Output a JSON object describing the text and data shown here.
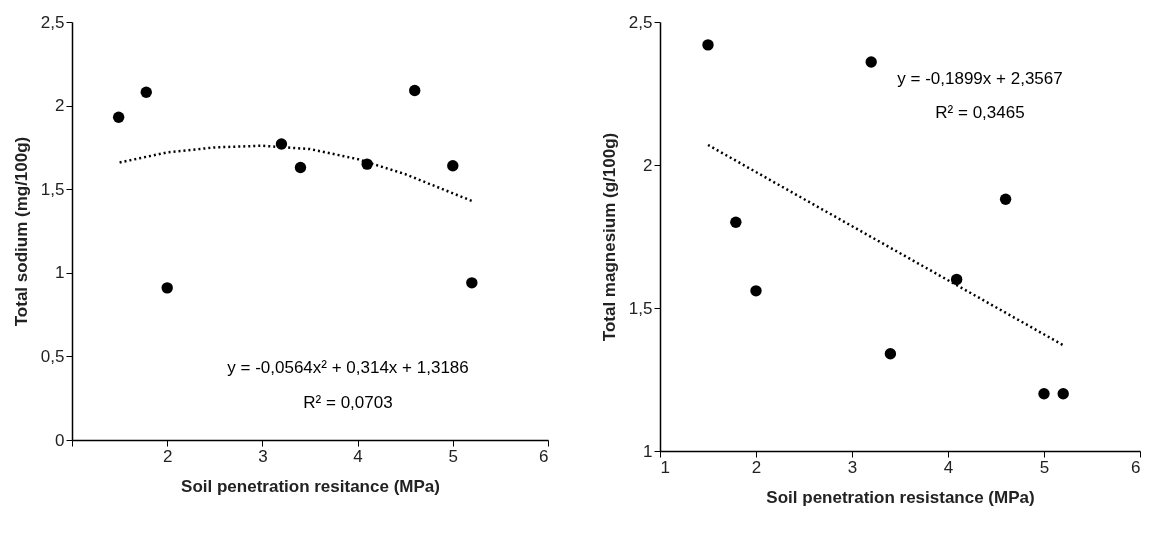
{
  "chart_data": [
    {
      "type": "scatter",
      "xlabel": "Soil penetration resitance (MPa)",
      "ylabel": "Total sodium (mg/100g)",
      "grid": false,
      "xlim": [
        1,
        6
      ],
      "xticks": [
        {
          "value": 1,
          "label": null
        },
        2,
        3,
        4,
        5,
        6
      ],
      "ylim": [
        0,
        2.5
      ],
      "yticks": [
        0,
        {
          "value": 0.5,
          "label": "0,5"
        },
        1,
        {
          "value": 1.5,
          "label": "1,5"
        },
        2,
        {
          "value": 2.5,
          "label": "2,5"
        }
      ],
      "series": [
        {
          "marker": "circle",
          "color": "#000000",
          "x": [
            1.49,
            1.78,
            2.0,
            3.2,
            3.4,
            4.1,
            4.6,
            5.0,
            5.2
          ],
          "values": [
            1.93,
            2.08,
            0.91,
            1.77,
            1.63,
            1.65,
            2.09,
            1.64,
            0.94
          ]
        },
        {
          "type": "line",
          "line_style": "dotted",
          "color": "#000000",
          "x": [
            1.5,
            2,
            2.5,
            3,
            3.5,
            4,
            4.5,
            5.2
          ],
          "values": [
            1.66,
            1.72,
            1.75,
            1.76,
            1.74,
            1.68,
            1.59,
            1.43
          ]
        }
      ],
      "annotations": [
        "y = -0,0564x² + 0,314x + 1,3186",
        "R² = 0,0703"
      ]
    },
    {
      "type": "scatter",
      "xlabel": "Soil penetration resistance (MPa)",
      "ylabel": "Total magnesium (g/100g)",
      "grid": false,
      "xlim": [
        1,
        6
      ],
      "xticks": [
        1,
        2,
        3,
        4,
        5,
        6
      ],
      "ylim": [
        1,
        2.5
      ],
      "yticks": [
        1,
        {
          "value": 1.5,
          "label": "1,5"
        },
        2,
        {
          "value": 2.5,
          "label": "2,5"
        }
      ],
      "series": [
        {
          "marker": "circle",
          "color": "#000000",
          "x": [
            1.5,
            1.79,
            2.0,
            3.2,
            3.4,
            4.09,
            4.6,
            5.0,
            5.2
          ],
          "values": [
            2.42,
            1.8,
            1.56,
            2.36,
            1.34,
            1.6,
            1.88,
            1.2,
            1.2
          ]
        },
        {
          "type": "line",
          "line_style": "dotted",
          "color": "#000000",
          "x": [
            1.5,
            5.2
          ],
          "values": [
            2.07,
            1.37
          ]
        }
      ],
      "annotations": [
        "y = -0,1899x + 2,3567",
        "R² = 0,3465"
      ]
    }
  ]
}
